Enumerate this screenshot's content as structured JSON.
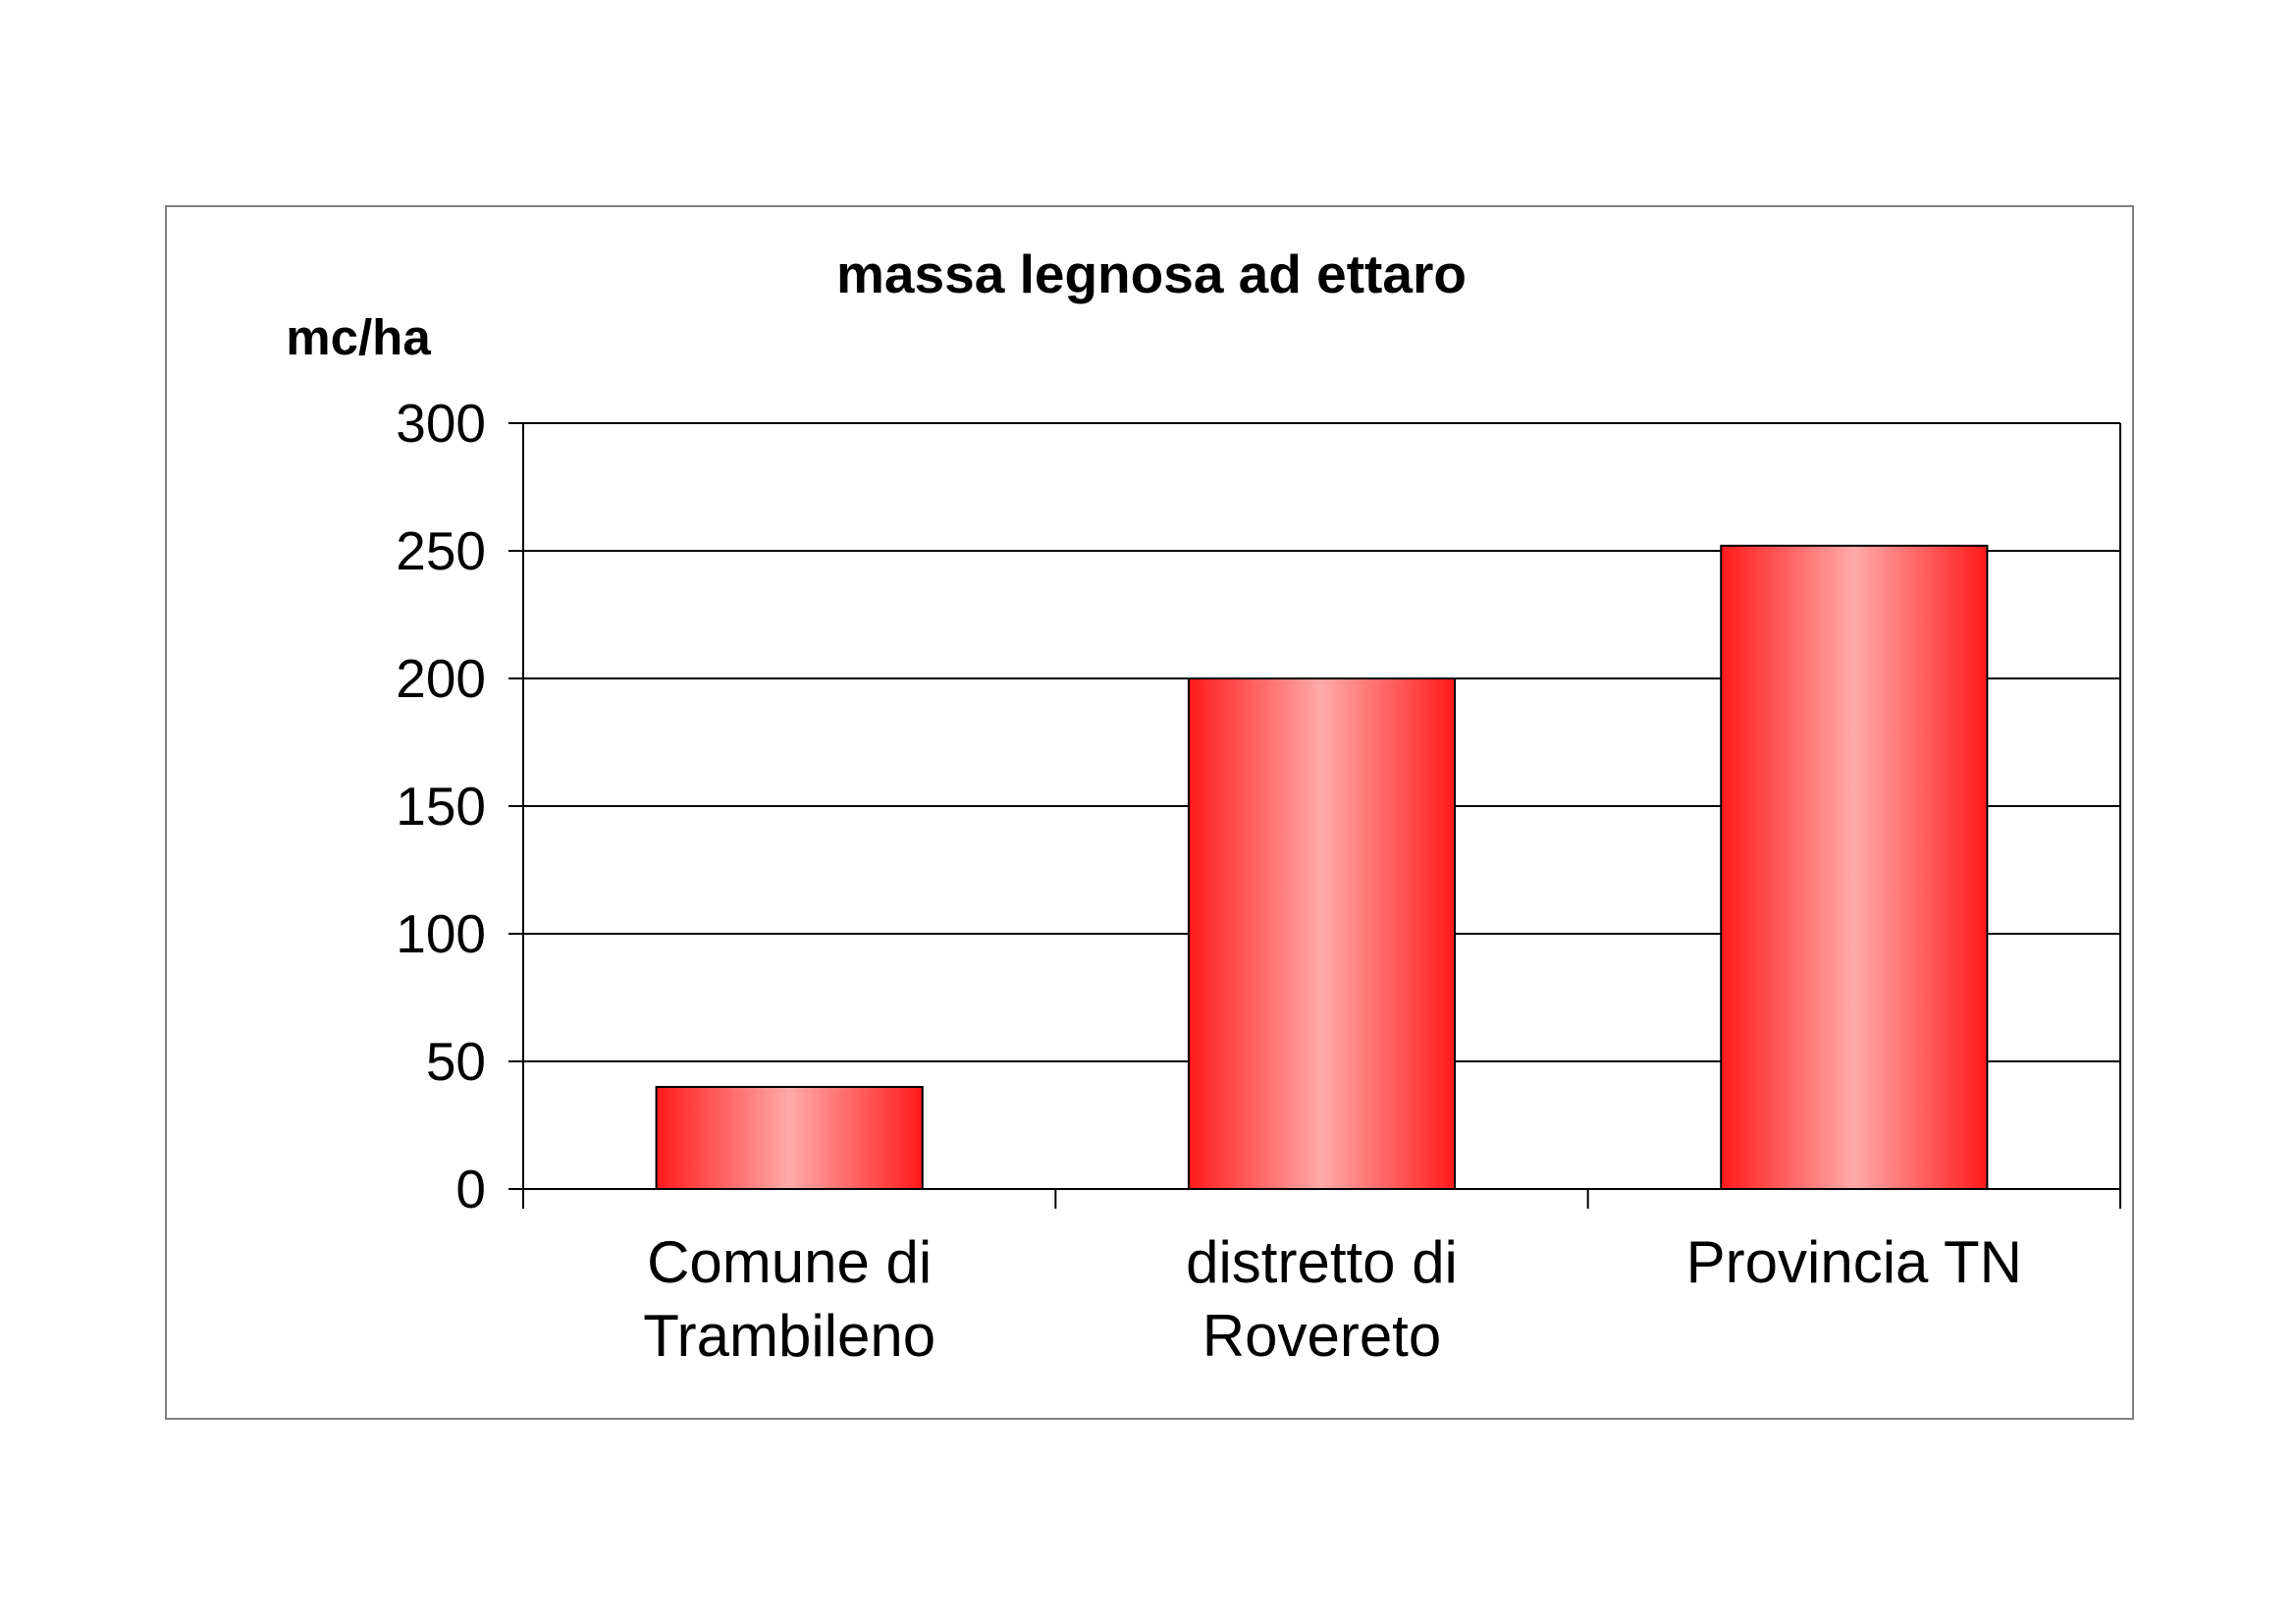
{
  "chart_data": {
    "type": "bar",
    "title": "massa legnosa ad ettaro",
    "ylabel": "mc/ha",
    "xlabel": "",
    "categories": [
      [
        "Comune di",
        "Trambileno"
      ],
      [
        "distretto di",
        "Rovereto"
      ],
      [
        "Provincia TN"
      ]
    ],
    "values": [
      40,
      200,
      252
    ],
    "ylim": [
      0,
      300
    ],
    "yticks": [
      0,
      50,
      100,
      150,
      200,
      250,
      300
    ],
    "ytick_labels": [
      "0",
      "50",
      "100",
      "150",
      "200",
      "250",
      "300"
    ],
    "grid": true,
    "legend": "none",
    "bar_color": "#ff1a1a",
    "bar_highlight_color": "#ffaaaa"
  }
}
